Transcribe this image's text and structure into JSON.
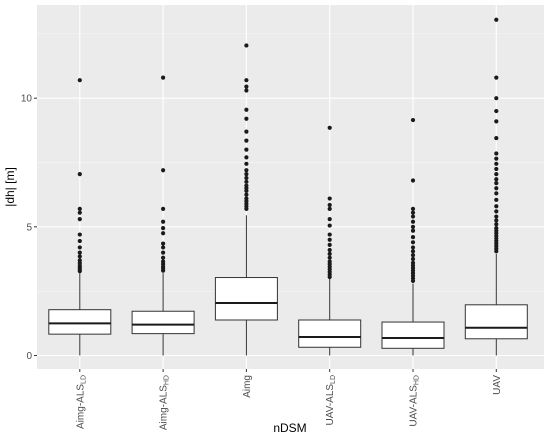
{
  "chart_data": {
    "type": "box",
    "title": "",
    "xlabel": "nDSM",
    "ylabel": "|dh| [m]",
    "ylim": [
      -0.5,
      13.4
    ],
    "yticks": [
      0,
      5,
      10
    ],
    "grid": true,
    "colors": {
      "panel_bg": "#ebebeb",
      "grid_major": "#ffffff",
      "box_fill": "#ffffff",
      "box_stroke": "#333333",
      "median": "#1a1a1a",
      "outlier": "#1a1a1a"
    },
    "categories": [
      {
        "base": "Aimg-ALS",
        "sub": "LD"
      },
      {
        "base": "Aimg-ALS",
        "sub": "HD"
      },
      {
        "base": "Aimg",
        "sub": ""
      },
      {
        "base": "UAV-ALS",
        "sub": "LD"
      },
      {
        "base": "UAV-ALS",
        "sub": "HD"
      },
      {
        "base": "UAV",
        "sub": ""
      }
    ],
    "boxes": [
      {
        "min": 0.0,
        "q1": 0.83,
        "median": 1.25,
        "q3": 1.78,
        "max": 3.2,
        "outliers": [
          3.28,
          3.35,
          3.42,
          3.5,
          3.6,
          3.7,
          3.85,
          4.0,
          4.2,
          4.45,
          4.7,
          5.3,
          5.55,
          5.7,
          7.05,
          10.7
        ]
      },
      {
        "min": 0.0,
        "q1": 0.85,
        "median": 1.2,
        "q3": 1.72,
        "max": 3.2,
        "outliers": [
          3.3,
          3.38,
          3.45,
          3.55,
          3.65,
          3.8,
          4.0,
          4.2,
          4.35,
          4.75,
          4.95,
          5.2,
          5.7,
          7.2,
          10.8
        ]
      },
      {
        "min": 0.0,
        "q1": 1.38,
        "median": 2.04,
        "q3": 3.03,
        "max": 5.45,
        "outliers": [
          5.7,
          5.8,
          5.9,
          6.0,
          6.1,
          6.25,
          6.4,
          6.5,
          6.6,
          6.75,
          6.9,
          7.05,
          7.2,
          7.45,
          7.7,
          8.0,
          8.35,
          8.7,
          9.2,
          9.55,
          10.3,
          10.45,
          10.7,
          12.05
        ]
      },
      {
        "min": 0.0,
        "q1": 0.32,
        "median": 0.72,
        "q3": 1.38,
        "max": 2.98,
        "outliers": [
          3.05,
          3.15,
          3.25,
          3.35,
          3.45,
          3.55,
          3.65,
          3.8,
          3.95,
          4.1,
          4.3,
          4.5,
          4.7,
          5.05,
          5.3,
          5.7,
          5.85,
          6.1,
          8.85
        ]
      },
      {
        "min": 0.0,
        "q1": 0.28,
        "median": 0.68,
        "q3": 1.3,
        "max": 2.8,
        "outliers": [
          2.9,
          3.0,
          3.1,
          3.2,
          3.3,
          3.4,
          3.5,
          3.6,
          3.75,
          3.9,
          4.05,
          4.2,
          4.4,
          4.6,
          4.85,
          5.0,
          5.2,
          5.4,
          5.55,
          5.7,
          6.8,
          9.15
        ]
      },
      {
        "min": 0.0,
        "q1": 0.65,
        "median": 1.08,
        "q3": 1.97,
        "max": 3.95,
        "outliers": [
          4.05,
          4.15,
          4.25,
          4.35,
          4.45,
          4.55,
          4.65,
          4.75,
          4.85,
          4.95,
          5.1,
          5.25,
          5.4,
          5.6,
          5.8,
          6.05,
          6.3,
          6.5,
          6.7,
          6.85,
          7.05,
          7.25,
          7.45,
          7.65,
          7.85,
          8.45,
          9.1,
          9.5,
          10.0,
          10.8,
          13.05
        ]
      }
    ]
  }
}
